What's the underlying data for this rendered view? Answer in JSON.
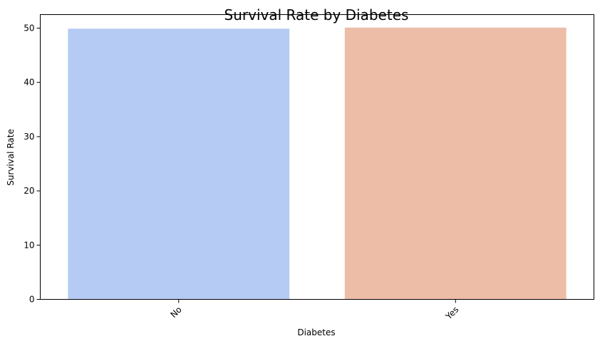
{
  "chart_data": {
    "type": "bar",
    "title": "Survival Rate by Diabetes",
    "xlabel": "Diabetes",
    "ylabel": "Survival Rate",
    "categories": [
      "No",
      "Yes"
    ],
    "values": [
      49.9,
      50.1
    ],
    "colors": [
      "#b6cbf4",
      "#edbda8"
    ],
    "ylim": [
      0,
      52.5
    ],
    "yticks": [
      "0",
      "10",
      "20",
      "30",
      "40",
      "50"
    ],
    "grid": false,
    "legend": "none"
  }
}
